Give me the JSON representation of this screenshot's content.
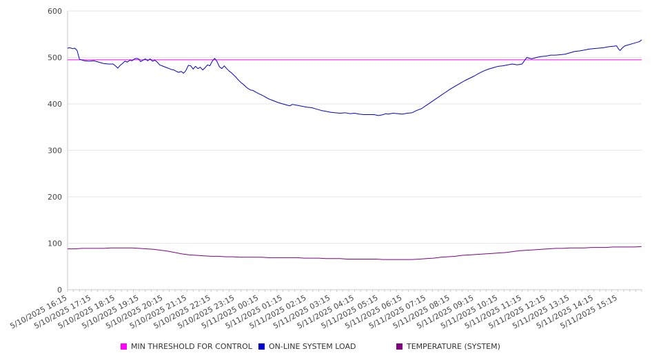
{
  "chart_data": {
    "type": "line",
    "ylim": [
      0,
      600
    ],
    "yticks": [
      0,
      100,
      200,
      300,
      400,
      500,
      600
    ],
    "grid": true,
    "legend_position": "bottom",
    "x_labels": [
      "5/10/2025 16:15",
      "5/10/2025 17:15",
      "5/10/2025 18:15",
      "5/10/2025 19:15",
      "5/10/2025 20:15",
      "5/10/2025 21:15",
      "5/10/2025 22:15",
      "5/10/2025 23:15",
      "5/11/2025 00:15",
      "5/11/2025 01:15",
      "5/11/2025 02:15",
      "5/11/2025 03:15",
      "5/11/2025 04:15",
      "5/11/2025 05:15",
      "5/11/2025 06:15",
      "5/11/2025 07:15",
      "5/11/2025 08:15",
      "5/11/2025 09:15",
      "5/11/2025 10:15",
      "5/11/2025 11:15",
      "5/11/2025 12:15",
      "5/11/2025 13:15",
      "5/11/2025 14:15",
      "5/11/2025 15:15"
    ],
    "series": [
      {
        "name": "MIN THRESHOLD FOR CONTROL",
        "color": "#ff00ff",
        "points": [
          [
            0,
            495
          ],
          [
            24,
            495
          ]
        ]
      },
      {
        "name": "ON-LINE SYSTEM LOAD",
        "color": "#0000cc",
        "points": [
          [
            0,
            520
          ],
          [
            0.1,
            521
          ],
          [
            0.2,
            519
          ],
          [
            0.3,
            520
          ],
          [
            0.4,
            515
          ],
          [
            0.5,
            496
          ],
          [
            0.7,
            493
          ],
          [
            0.9,
            492
          ],
          [
            1.1,
            493
          ],
          [
            1.3,
            490
          ],
          [
            1.5,
            487
          ],
          [
            1.7,
            486
          ],
          [
            1.9,
            486
          ],
          [
            2.0,
            482
          ],
          [
            2.1,
            477
          ],
          [
            2.2,
            483
          ],
          [
            2.3,
            487
          ],
          [
            2.4,
            492
          ],
          [
            2.5,
            490
          ],
          [
            2.6,
            494
          ],
          [
            2.7,
            493
          ],
          [
            2.8,
            497
          ],
          [
            2.9,
            498
          ],
          [
            3.0,
            496
          ],
          [
            3.05,
            491
          ],
          [
            3.15,
            494
          ],
          [
            3.25,
            497
          ],
          [
            3.35,
            493
          ],
          [
            3.45,
            497
          ],
          [
            3.55,
            492
          ],
          [
            3.65,
            494
          ],
          [
            3.75,
            490
          ],
          [
            3.85,
            484
          ],
          [
            3.95,
            482
          ],
          [
            4.05,
            480
          ],
          [
            4.15,
            478
          ],
          [
            4.25,
            476
          ],
          [
            4.35,
            474
          ],
          [
            4.45,
            473
          ],
          [
            4.55,
            470
          ],
          [
            4.65,
            468
          ],
          [
            4.75,
            470
          ],
          [
            4.85,
            466
          ],
          [
            4.95,
            472
          ],
          [
            5.05,
            483
          ],
          [
            5.15,
            482
          ],
          [
            5.25,
            475
          ],
          [
            5.35,
            481
          ],
          [
            5.45,
            476
          ],
          [
            5.55,
            479
          ],
          [
            5.65,
            473
          ],
          [
            5.75,
            478
          ],
          [
            5.85,
            484
          ],
          [
            5.95,
            482
          ],
          [
            6.05,
            492
          ],
          [
            6.15,
            498
          ],
          [
            6.25,
            491
          ],
          [
            6.35,
            480
          ],
          [
            6.45,
            476
          ],
          [
            6.55,
            482
          ],
          [
            6.65,
            476
          ],
          [
            6.75,
            471
          ],
          [
            6.85,
            467
          ],
          [
            6.95,
            462
          ],
          [
            7.05,
            457
          ],
          [
            7.15,
            451
          ],
          [
            7.25,
            446
          ],
          [
            7.35,
            442
          ],
          [
            7.45,
            437
          ],
          [
            7.55,
            433
          ],
          [
            7.65,
            430
          ],
          [
            7.75,
            429
          ],
          [
            7.85,
            426
          ],
          [
            8.0,
            422
          ],
          [
            8.2,
            417
          ],
          [
            8.4,
            411
          ],
          [
            8.6,
            407
          ],
          [
            8.8,
            403
          ],
          [
            9.0,
            400
          ],
          [
            9.2,
            397
          ],
          [
            9.3,
            396
          ],
          [
            9.4,
            399
          ],
          [
            9.6,
            397
          ],
          [
            9.8,
            395
          ],
          [
            10.0,
            393
          ],
          [
            10.2,
            392
          ],
          [
            10.4,
            389
          ],
          [
            10.6,
            386
          ],
          [
            10.8,
            384
          ],
          [
            11.0,
            382
          ],
          [
            11.2,
            381
          ],
          [
            11.4,
            380
          ],
          [
            11.6,
            381
          ],
          [
            11.8,
            379
          ],
          [
            12.0,
            380
          ],
          [
            12.2,
            378
          ],
          [
            12.4,
            377
          ],
          [
            12.6,
            377
          ],
          [
            12.8,
            377
          ],
          [
            13.0,
            375
          ],
          [
            13.1,
            376
          ],
          [
            13.2,
            377
          ],
          [
            13.3,
            379
          ],
          [
            13.4,
            378
          ],
          [
            13.6,
            380
          ],
          [
            13.8,
            379
          ],
          [
            14.0,
            378
          ],
          [
            14.2,
            380
          ],
          [
            14.4,
            381
          ],
          [
            14.6,
            386
          ],
          [
            14.8,
            390
          ],
          [
            15.0,
            397
          ],
          [
            15.2,
            404
          ],
          [
            15.4,
            411
          ],
          [
            15.6,
            418
          ],
          [
            15.8,
            425
          ],
          [
            16.0,
            432
          ],
          [
            16.2,
            438
          ],
          [
            16.4,
            444
          ],
          [
            16.6,
            450
          ],
          [
            16.8,
            455
          ],
          [
            17.0,
            460
          ],
          [
            17.2,
            466
          ],
          [
            17.4,
            471
          ],
          [
            17.6,
            475
          ],
          [
            17.8,
            478
          ],
          [
            18.0,
            481
          ],
          [
            18.2,
            482
          ],
          [
            18.4,
            484
          ],
          [
            18.6,
            486
          ],
          [
            18.8,
            484
          ],
          [
            19.0,
            486
          ],
          [
            19.1,
            493
          ],
          [
            19.2,
            500
          ],
          [
            19.4,
            497
          ],
          [
            19.6,
            500
          ],
          [
            19.8,
            502
          ],
          [
            20.0,
            503
          ],
          [
            20.2,
            505
          ],
          [
            20.4,
            505
          ],
          [
            20.6,
            506
          ],
          [
            20.8,
            507
          ],
          [
            21.0,
            510
          ],
          [
            21.2,
            513
          ],
          [
            21.4,
            514
          ],
          [
            21.6,
            516
          ],
          [
            21.8,
            518
          ],
          [
            22.0,
            519
          ],
          [
            22.2,
            520
          ],
          [
            22.4,
            521
          ],
          [
            22.6,
            523
          ],
          [
            22.8,
            524
          ],
          [
            22.95,
            525
          ],
          [
            23.05,
            517
          ],
          [
            23.1,
            515
          ],
          [
            23.2,
            521
          ],
          [
            23.3,
            525
          ],
          [
            23.5,
            528
          ],
          [
            23.7,
            531
          ],
          [
            23.9,
            534
          ],
          [
            24.0,
            538
          ]
        ]
      },
      {
        "name": "TEMPERATURE (SYSTEM)",
        "color": "#800080",
        "points": [
          [
            0,
            88
          ],
          [
            0.3,
            88
          ],
          [
            0.6,
            89
          ],
          [
            0.9,
            89
          ],
          [
            1.2,
            89
          ],
          [
            1.5,
            89
          ],
          [
            1.8,
            90
          ],
          [
            2.1,
            90
          ],
          [
            2.4,
            90
          ],
          [
            2.7,
            90
          ],
          [
            3.0,
            89
          ],
          [
            3.3,
            88
          ],
          [
            3.6,
            87
          ],
          [
            3.9,
            85
          ],
          [
            4.2,
            83
          ],
          [
            4.5,
            80
          ],
          [
            4.8,
            77
          ],
          [
            5.1,
            75
          ],
          [
            5.4,
            74
          ],
          [
            5.7,
            73
          ],
          [
            6.0,
            72
          ],
          [
            6.3,
            72
          ],
          [
            6.6,
            71
          ],
          [
            6.9,
            71
          ],
          [
            7.2,
            70
          ],
          [
            7.5,
            70
          ],
          [
            7.8,
            70
          ],
          [
            8.1,
            70
          ],
          [
            8.4,
            69
          ],
          [
            8.7,
            69
          ],
          [
            9.0,
            69
          ],
          [
            9.3,
            69
          ],
          [
            9.6,
            69
          ],
          [
            9.9,
            68
          ],
          [
            10.2,
            68
          ],
          [
            10.5,
            68
          ],
          [
            10.8,
            67
          ],
          [
            11.1,
            67
          ],
          [
            11.4,
            67
          ],
          [
            11.7,
            66
          ],
          [
            12.0,
            66
          ],
          [
            12.3,
            66
          ],
          [
            12.6,
            66
          ],
          [
            12.9,
            66
          ],
          [
            13.2,
            65
          ],
          [
            13.5,
            65
          ],
          [
            13.8,
            65
          ],
          [
            14.1,
            65
          ],
          [
            14.4,
            65
          ],
          [
            14.7,
            66
          ],
          [
            15.0,
            67
          ],
          [
            15.3,
            68
          ],
          [
            15.6,
            70
          ],
          [
            15.9,
            71
          ],
          [
            16.2,
            72
          ],
          [
            16.5,
            74
          ],
          [
            16.8,
            75
          ],
          [
            17.1,
            76
          ],
          [
            17.4,
            77
          ],
          [
            17.7,
            78
          ],
          [
            18.0,
            79
          ],
          [
            18.3,
            80
          ],
          [
            18.6,
            82
          ],
          [
            18.9,
            84
          ],
          [
            19.2,
            85
          ],
          [
            19.5,
            86
          ],
          [
            19.8,
            87
          ],
          [
            20.1,
            88
          ],
          [
            20.4,
            89
          ],
          [
            20.7,
            89
          ],
          [
            21.0,
            90
          ],
          [
            21.3,
            90
          ],
          [
            21.6,
            90
          ],
          [
            21.9,
            91
          ],
          [
            22.2,
            91
          ],
          [
            22.5,
            91
          ],
          [
            22.8,
            92
          ],
          [
            23.1,
            92
          ],
          [
            23.4,
            92
          ],
          [
            23.7,
            92
          ],
          [
            24.0,
            93
          ]
        ]
      }
    ]
  }
}
